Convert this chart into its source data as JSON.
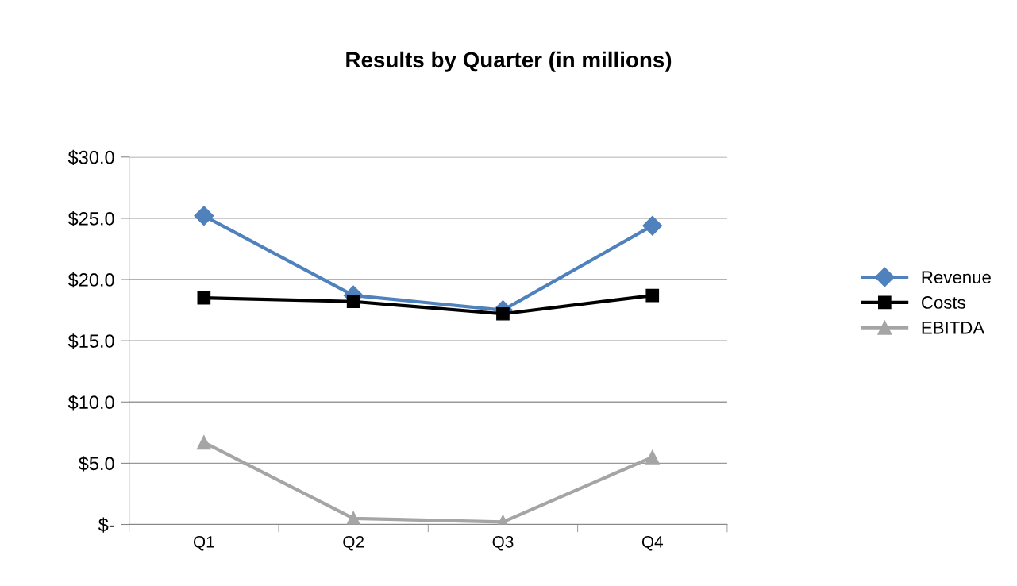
{
  "chart_data": {
    "type": "line",
    "title": "Results by Quarter (in millions)",
    "categories": [
      "Q1",
      "Q2",
      "Q3",
      "Q4"
    ],
    "series": [
      {
        "name": "Revenue",
        "color": "#4f81bd",
        "marker": "diamond",
        "values": [
          25.2,
          18.7,
          17.5,
          24.4
        ]
      },
      {
        "name": "Costs",
        "color": "#000000",
        "marker": "square",
        "values": [
          18.5,
          18.2,
          17.2,
          18.7
        ]
      },
      {
        "name": "EBITDA",
        "color": "#a5a5a5",
        "marker": "triangle",
        "values": [
          6.7,
          0.5,
          0.2,
          5.5
        ]
      }
    ],
    "ylim": [
      0,
      30
    ],
    "yticks": [
      {
        "value": 0,
        "label": "$-"
      },
      {
        "value": 5,
        "label": "$5.0"
      },
      {
        "value": 10,
        "label": "$10.0"
      },
      {
        "value": 15,
        "label": "$15.0"
      },
      {
        "value": 20,
        "label": "$20.0"
      },
      {
        "value": 25,
        "label": "$25.0"
      },
      {
        "value": 30,
        "label": "$30.0"
      }
    ],
    "grid": "y",
    "legend": "right",
    "line_style": "solid"
  }
}
